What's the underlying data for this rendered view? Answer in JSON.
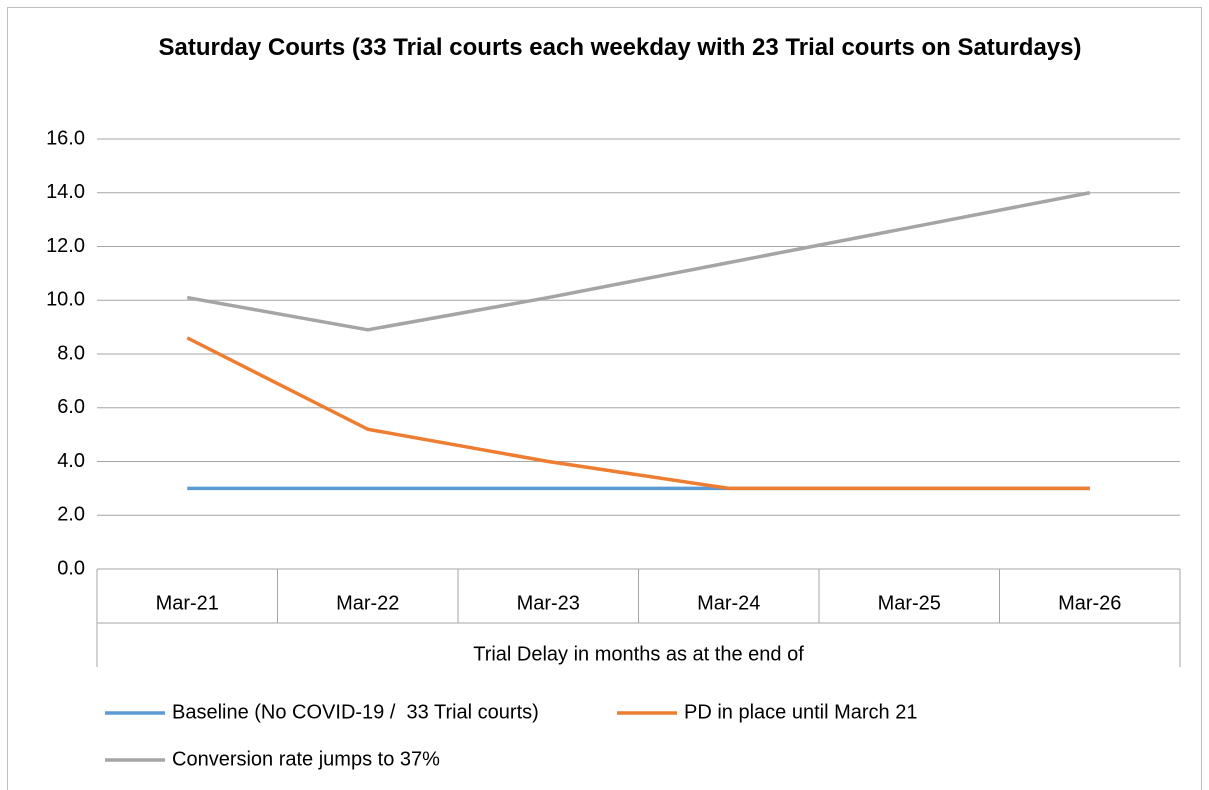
{
  "chart_data": {
    "type": "line",
    "title": "Saturday Courts (33 Trial courts each weekday with 23 Trial courts on Saturdays)",
    "x_label": "Trial Delay in months as at the end of",
    "categories": [
      "Mar-21",
      "Mar-22",
      "Mar-23",
      "Mar-24",
      "Mar-25",
      "Mar-26"
    ],
    "series": [
      {
        "name": "Baseline (No COVID-19 /  33 Trial courts)",
        "color": "#5b9bd5",
        "values": [
          3.0,
          3.0,
          3.0,
          3.0,
          3.0,
          3.0
        ]
      },
      {
        "name": "PD in place until March 21",
        "color": "#ed7d31",
        "values": [
          8.6,
          5.2,
          4.0,
          3.0,
          3.0,
          3.0
        ]
      },
      {
        "name": "Conversion rate jumps to 37%",
        "color": "#a5a5a5",
        "values": [
          10.1,
          8.9,
          10.1,
          11.4,
          12.7,
          14.0
        ]
      }
    ],
    "ylim": [
      0,
      16
    ],
    "yticks": [
      {
        "value": 0,
        "label": "0.0"
      },
      {
        "value": 2,
        "label": "2.0"
      },
      {
        "value": 4,
        "label": "4.0"
      },
      {
        "value": 6,
        "label": "6.0"
      },
      {
        "value": 8,
        "label": "8.0"
      },
      {
        "value": 10,
        "label": "10.0"
      },
      {
        "value": 12,
        "label": "12.0"
      },
      {
        "value": 14,
        "label": "14.0"
      },
      {
        "value": 16,
        "label": "16.0"
      }
    ],
    "grid": true,
    "legend": "bottom"
  }
}
